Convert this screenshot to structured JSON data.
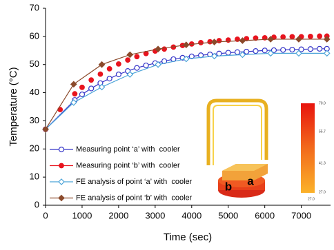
{
  "chart_data": {
    "type": "line",
    "x_label": "Time (sec)",
    "y_label": "Temperature (°C)",
    "xlim": [
      0,
      7800
    ],
    "ylim": [
      0,
      70
    ],
    "xticks": [
      0,
      1000,
      2000,
      3000,
      4000,
      5000,
      6000,
      7000
    ],
    "yticks": [
      0,
      10,
      20,
      30,
      40,
      50,
      60,
      70
    ],
    "grid": false,
    "legend": "lower left",
    "series": [
      {
        "name": "Measuring point ‘a’ with  cooler",
        "color": "#3535c8",
        "marker": "open-circle",
        "line": true,
        "x": [
          0,
          800,
          1000,
          1250,
          1500,
          1750,
          2000,
          2250,
          2500,
          2750,
          3000,
          3250,
          3500,
          3750,
          4000,
          4250,
          4500,
          4750,
          5000,
          5250,
          5500,
          5750,
          6000,
          6250,
          6500,
          6750,
          7000,
          7250,
          7500,
          7700
        ],
        "values": [
          27,
          37.4,
          39.4,
          41.5,
          43.4,
          45.0,
          46.5,
          47.7,
          48.8,
          49.7,
          50.5,
          51.2,
          51.9,
          52.4,
          52.9,
          53.3,
          53.6,
          53.9,
          54.2,
          54.4,
          54.6,
          54.8,
          55.0,
          55.1,
          55.2,
          55.3,
          55.4,
          55.5,
          55.6,
          55.6
        ]
      },
      {
        "name": "Measuring point ‘b’ with  cooler",
        "color": "#e8141e",
        "marker": "circle",
        "line": false,
        "x": [
          0,
          400,
          800,
          1000,
          1250,
          1500,
          1750,
          2000,
          2250,
          2500,
          2750,
          3000,
          3250,
          3500,
          3750,
          4000,
          4250,
          4500,
          4750,
          5000,
          5250,
          5500,
          5750,
          6000,
          6250,
          6500,
          6750,
          7000,
          7250,
          7500,
          7700
        ],
        "values": [
          27,
          34.0,
          39.6,
          41.9,
          44.5,
          46.6,
          48.5,
          50.2,
          51.6,
          52.8,
          53.9,
          54.8,
          55.5,
          56.2,
          56.8,
          57.3,
          57.8,
          58.1,
          58.5,
          58.7,
          59.0,
          59.2,
          59.4,
          59.5,
          59.7,
          59.8,
          59.9,
          59.9,
          60.0,
          60.1,
          60.1
        ]
      },
      {
        "name": "FE analysis of point ‘a’ with  cooler",
        "color": "#4aa3d8",
        "marker": "open-diamond",
        "line": true,
        "x": [
          0,
          770,
          1540,
          2310,
          3080,
          3850,
          4620,
          5390,
          6160,
          6930,
          7700
        ],
        "values": [
          27,
          36.5,
          42,
          46.5,
          50,
          52,
          53,
          53.5,
          54,
          54,
          54
        ]
      },
      {
        "name": "FE analysis of point ‘b’ with  cooler",
        "color": "#8b4a2b",
        "marker": "diamond",
        "line": true,
        "x": [
          0,
          770,
          1540,
          2310,
          3080,
          3850,
          4620,
          5390,
          6160,
          6930,
          7700
        ],
        "values": [
          27,
          43,
          50,
          53.5,
          55.5,
          57,
          58,
          58.5,
          59,
          59,
          59
        ]
      }
    ],
    "inset": {
      "point_labels": [
        "b",
        "a"
      ],
      "colorbar_labels": [
        "70.0",
        "55.7",
        "41.3",
        "27.0"
      ],
      "colorbar_min": "27.0"
    }
  }
}
